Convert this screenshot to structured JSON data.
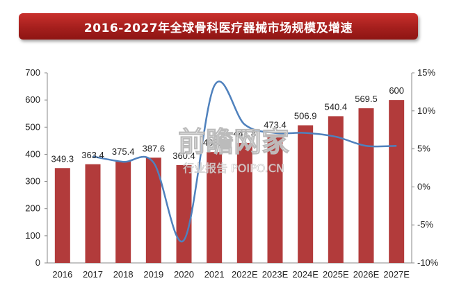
{
  "title": "2016-2027年全球骨科医疗器械市场规模及增速",
  "watermark": {
    "main": "前瞻网家",
    "sub": "行业报告 POIPO.CN"
  },
  "chart_data": {
    "type": "bar",
    "categories": [
      "2016",
      "2017",
      "2018",
      "2019",
      "2020",
      "2021",
      "2022E",
      "2023E",
      "2024E",
      "2025E",
      "2026E",
      "2027E"
    ],
    "series": [
      {
        "type": "bar",
        "axis": "left",
        "color": "#b23b3b",
        "values": [
          349.3,
          363.4,
          375.4,
          387.6,
          360.4,
          408.3,
          441.8,
          473.4,
          506.9,
          540.4,
          569.5,
          600
        ],
        "labels": [
          "349.3",
          "363.4",
          "375.4",
          "387.6",
          "360.4",
          "408.3",
          "441.8",
          "473.4",
          "506.9",
          "540.4",
          "569.5",
          "600"
        ]
      },
      {
        "type": "line",
        "axis": "right",
        "color": "#4f81bd",
        "smooth": true,
        "values": [
          null,
          4.0,
          3.3,
          3.2,
          -7.0,
          13.3,
          8.2,
          7.1,
          7.1,
          6.6,
          5.4,
          5.4
        ]
      }
    ],
    "y_left": {
      "min": 0,
      "max": 700,
      "ticks": [
        "0",
        "100",
        "200",
        "300",
        "400",
        "500",
        "600",
        "700"
      ]
    },
    "y_right": {
      "min": -10,
      "max": 15,
      "ticks": [
        "-10%",
        "-5%",
        "0%",
        "5%",
        "10%",
        "15%"
      ]
    },
    "grid": false,
    "legend": "none"
  }
}
